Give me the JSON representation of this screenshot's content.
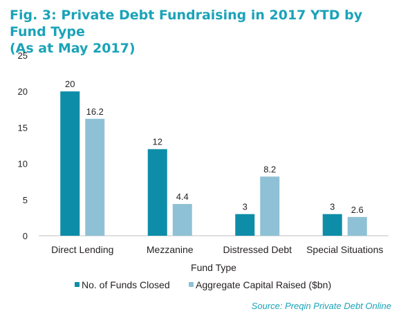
{
  "title": {
    "line1": "Fig. 3: Private Debt Fundraising in 2017 YTD by Fund Type",
    "line2": "(As at May 2017)"
  },
  "source": "Source: Preqin Private Debt Online",
  "colors": {
    "series1": "#0e8da8",
    "series2": "#8fc1d6",
    "title": "#1aa3b8"
  },
  "chart_data": {
    "type": "bar",
    "xlabel": "Fund Type",
    "ylabel": "",
    "ylim": [
      0,
      25
    ],
    "yticks": [
      0,
      5,
      10,
      15,
      20,
      25
    ],
    "categories": [
      "Direct Lending",
      "Mezzanine",
      "Distressed Debt",
      "Special Situations"
    ],
    "series": [
      {
        "name": "No. of Funds Closed",
        "values": [
          20,
          12,
          3,
          3
        ]
      },
      {
        "name": "Aggregate Capital Raised ($bn)",
        "values": [
          16.2,
          4.4,
          8.2,
          2.6
        ]
      }
    ],
    "grid": false,
    "legend": "bottom"
  }
}
